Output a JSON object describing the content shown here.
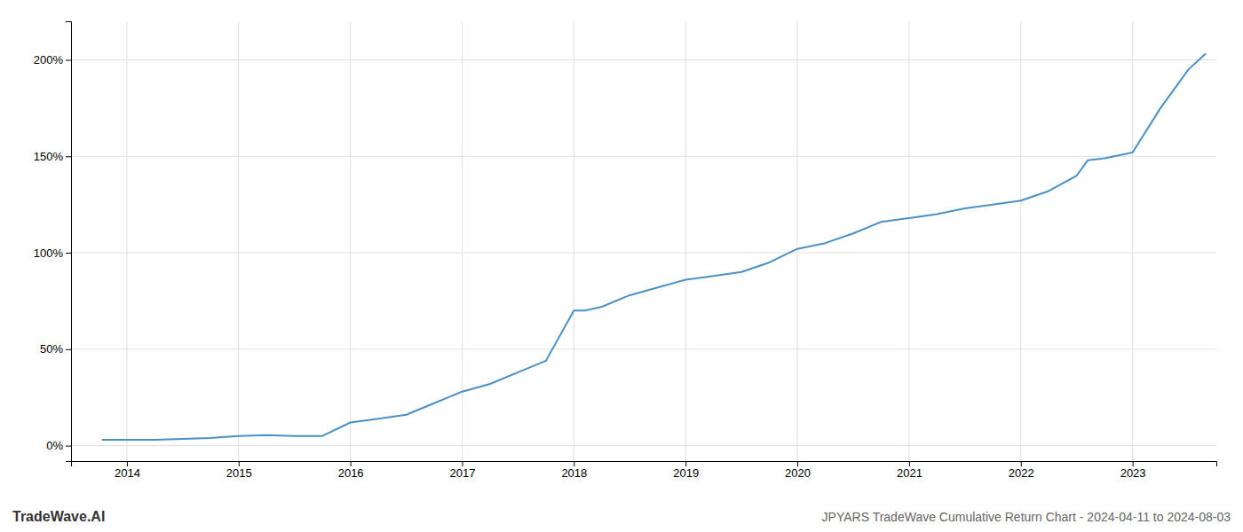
{
  "chart_data": {
    "type": "line",
    "title": "JPYARS TradeWave Cumulative Return Chart - 2024-04-11 to 2024-08-03",
    "annotations": [
      "TradeWave.AI"
    ],
    "color": "#4a90c4",
    "grid": true,
    "x": [
      2013.78,
      2014.0,
      2014.25,
      2014.5,
      2014.75,
      2015.0,
      2015.25,
      2015.5,
      2015.75,
      2016.0,
      2016.25,
      2016.5,
      2016.75,
      2017.0,
      2017.25,
      2017.5,
      2017.75,
      2018.0,
      2018.1,
      2018.25,
      2018.5,
      2018.75,
      2019.0,
      2019.25,
      2019.5,
      2019.75,
      2020.0,
      2020.25,
      2020.5,
      2020.75,
      2021.0,
      2021.25,
      2021.5,
      2021.75,
      2022.0,
      2022.25,
      2022.5,
      2022.6,
      2022.75,
      2023.0,
      2023.25,
      2023.5,
      2023.65
    ],
    "values": [
      3,
      3,
      3,
      3.5,
      4,
      5,
      5.5,
      5,
      5,
      12,
      14,
      16,
      22,
      28,
      32,
      38,
      44,
      70,
      70,
      72,
      78,
      82,
      86,
      88,
      90,
      95,
      102,
      105,
      110,
      116,
      118,
      120,
      123,
      125,
      127,
      132,
      140,
      148,
      149,
      152,
      175,
      195,
      203
    ],
    "xlim": [
      2013.5,
      2023.75
    ],
    "xticks": [
      2014,
      2015,
      2016,
      2017,
      2018,
      2019,
      2020,
      2021,
      2022,
      2023
    ],
    "ylim": [
      -8,
      220
    ],
    "yticks": [
      {
        "value": 0,
        "label": "0%"
      },
      {
        "value": 50,
        "label": "50%"
      },
      {
        "value": 100,
        "label": "100%"
      },
      {
        "value": 150,
        "label": "150%"
      },
      {
        "value": 200,
        "label": "200%"
      }
    ]
  }
}
